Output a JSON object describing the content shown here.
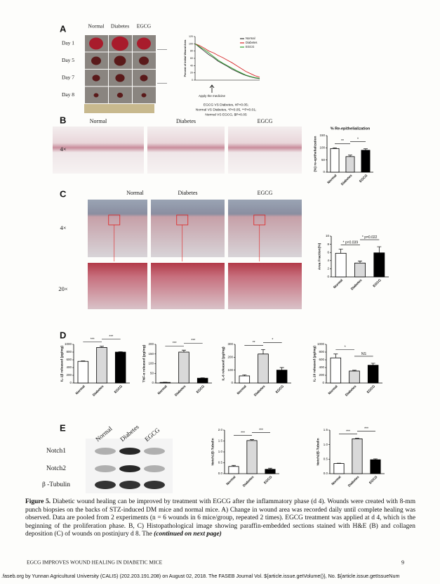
{
  "panel_labels": [
    "A",
    "B",
    "C",
    "D",
    "E"
  ],
  "panel_a": {
    "groups": [
      "Normal",
      "Diabetes",
      "EGCG"
    ],
    "days": [
      "Day 1",
      "Day 5",
      "Day 7",
      "Day 8"
    ],
    "chart": {
      "type": "line",
      "y_label": "Percent of initial Wound Area",
      "x": [
        0,
        1,
        2,
        3,
        4,
        5,
        6,
        7,
        8,
        9,
        10,
        11,
        12,
        13,
        14
      ],
      "xlim": [
        0,
        14
      ],
      "ylim": [
        0,
        120
      ],
      "yticks": [
        0,
        20,
        40,
        60,
        80,
        100,
        120
      ],
      "series": [
        {
          "name": "Normal",
          "color": "#333333",
          "values": [
            100,
            90,
            80,
            70,
            62,
            52,
            45,
            38,
            30,
            24,
            18,
            13,
            9,
            6,
            4
          ]
        },
        {
          "name": "Diabetes",
          "color": "#d62728",
          "values": [
            100,
            95,
            88,
            80,
            75,
            68,
            62,
            55,
            48,
            40,
            32,
            24,
            18,
            12,
            8
          ]
        },
        {
          "name": "EGCG",
          "color": "#2ca02c",
          "values": [
            100,
            92,
            84,
            75,
            65,
            55,
            47,
            40,
            33,
            26,
            20,
            14,
            10,
            7,
            5
          ]
        }
      ]
    },
    "treatment_note": "Apply the medicine",
    "stats_notes": [
      "EGCG VS Diabetes, #P<0.05;",
      "Normal VS Diabetes, *P<0.05, **P<0.01;",
      "Normal VS EGCG, $P<0.05"
    ]
  },
  "panel_b": {
    "groups": [
      "Normal",
      "Diabetes",
      "EGCG"
    ],
    "magnification": "4×",
    "chart": {
      "type": "bar",
      "title": "% Re-epithelialization",
      "y_label": "(%) re-epithelialization",
      "categories": [
        "Normal",
        "Diabetes",
        "EGCG"
      ],
      "values": [
        97,
        64,
        90
      ],
      "errors": [
        3,
        6,
        6
      ],
      "ylim": [
        0,
        150
      ],
      "yticks": [
        0,
        50,
        100,
        150
      ],
      "colors": [
        "#ffffff",
        "#d9d9d9",
        "#000000"
      ],
      "significance": [
        "**",
        "*"
      ]
    }
  },
  "panel_c": {
    "groups": [
      "Normal",
      "Diabetes",
      "EGCG"
    ],
    "magnifications": [
      "4×",
      "20×"
    ],
    "chart": {
      "type": "bar",
      "y_label": "Area Fraction(%)",
      "categories": [
        "Normal",
        "Diabetes",
        "EGCG"
      ],
      "values": [
        5.8,
        3.4,
        5.9
      ],
      "errors": [
        1.0,
        0.5,
        1.5
      ],
      "ylim": [
        0,
        10
      ],
      "yticks": [
        0,
        2,
        4,
        6,
        8,
        10
      ],
      "colors": [
        "#ffffff",
        "#d9d9d9",
        "#000000"
      ],
      "significance": [
        "* p=0.039",
        "* p=0.022"
      ]
    }
  },
  "panel_d": {
    "charts": [
      {
        "type": "bar",
        "y_label": "IL-1β released (pg/mg)",
        "categories": [
          "Normal",
          "Diabetes",
          "EGCG"
        ],
        "values": [
          560,
          920,
          800
        ],
        "errors": [
          10,
          30,
          10
        ],
        "ylim": [
          0,
          1000
        ],
        "yticks": [
          0,
          200,
          400,
          600,
          800,
          1000
        ],
        "colors": [
          "#ffffff",
          "#d9d9d9",
          "#000000"
        ],
        "significance": [
          "***",
          "***"
        ]
      },
      {
        "type": "bar",
        "y_label": "TNF-α released (pg/mg)",
        "categories": [
          "Normal",
          "Diabetes",
          "EGCG"
        ],
        "values": [
          3,
          160,
          25
        ],
        "errors": [
          1,
          10,
          2
        ],
        "ylim": [
          0,
          200
        ],
        "yticks": [
          0,
          50,
          100,
          150,
          200
        ],
        "colors": [
          "#ffffff",
          "#d9d9d9",
          "#000000"
        ],
        "significance": [
          "***",
          "***"
        ]
      },
      {
        "type": "bar",
        "y_label": "IL-6 released (pg/mg)",
        "categories": [
          "Normal",
          "Diabetes",
          "EGCG"
        ],
        "values": [
          55,
          225,
          100
        ],
        "errors": [
          8,
          35,
          20
        ],
        "ylim": [
          0,
          300
        ],
        "yticks": [
          0,
          100,
          200,
          300
        ],
        "colors": [
          "#ffffff",
          "#d9d9d9",
          "#000000"
        ],
        "significance": [
          "**",
          "*"
        ]
      },
      {
        "type": "bar",
        "y_label": "IL-10 released (pg/mg)",
        "categories": [
          "Normal",
          "Diabetes",
          "EGCG"
        ],
        "values": [
          650,
          310,
          460
        ],
        "errors": [
          100,
          20,
          50
        ],
        "ylim": [
          0,
          1000
        ],
        "yticks": [
          0,
          200,
          400,
          600,
          800,
          1000
        ],
        "colors": [
          "#ffffff",
          "#d9d9d9",
          "#000000"
        ],
        "significance": [
          "*",
          "NS"
        ]
      }
    ]
  },
  "panel_e": {
    "groups": [
      "Normal",
      "Diabetes",
      "EGCG"
    ],
    "proteins": [
      "Notch1",
      "Notch2",
      "β -Tubulin"
    ],
    "charts": [
      {
        "type": "bar",
        "y_label": "Notch1/β-Tubulin",
        "categories": [
          "Normal",
          "Diabetes",
          "EGCG"
        ],
        "values": [
          0.33,
          1.52,
          0.2
        ],
        "errors": [
          0.05,
          0.04,
          0.05
        ],
        "ylim": [
          0,
          2
        ],
        "yticks": [
          {
            "value": 0,
            "label": "0.0"
          },
          {
            "value": 0.5,
            "label": "0.5"
          },
          {
            "value": 1,
            "label": "1.0"
          },
          {
            "value": 1.5,
            "label": "1.5"
          },
          {
            "value": 2,
            "label": "2.0"
          }
        ],
        "colors": [
          "#ffffff",
          "#d9d9d9",
          "#000000"
        ],
        "significance": [
          "***",
          "***"
        ]
      },
      {
        "type": "bar",
        "y_label": "Notch2/β-Tubulin",
        "categories": [
          "Normal",
          "Diabetes",
          "EGCG"
        ],
        "values": [
          0.35,
          1.2,
          0.48
        ],
        "errors": [
          0.01,
          0.02,
          0.03
        ],
        "ylim": [
          0,
          1.5
        ],
        "yticks": [
          {
            "value": 0,
            "label": "0.0"
          },
          {
            "value": 0.5,
            "label": "0.5"
          },
          {
            "value": 1,
            "label": "1.0"
          },
          {
            "value": 1.5,
            "label": "1.5"
          }
        ],
        "colors": [
          "#ffffff",
          "#d9d9d9",
          "#000000"
        ],
        "significance": [
          "***",
          "***"
        ]
      }
    ]
  },
  "caption": {
    "label": "Figure 5.",
    "text": "Diabetic wound healing can be improved by treatment with EGCG after the inflammatory phase (d 4). Wounds were created with 8-mm punch biopsies on the backs of STZ-induced DM mice and normal mice. A) Change in wound area was recorded daily until complete healing was observed. Data are pooled from 2 experiments (n = 6 wounds in 6 mice/group, repeated 2 times). EGCG treatment was applied at d 4, which is the beginning of the proliferation phase. B, C) Histopathological image showing paraffin-embedded sections stained with H&E (B) and collagen deposition (C) of wounds on postinjury d 8. The",
    "continued": "(continued on next page)"
  },
  "footer": {
    "running_title": "EGCG IMPROVES WOUND HEALING IN DIABETIC MICE",
    "page": "9",
    "download": ".faseb.org by Yunnan Agricultural University (CALIS) (202.203.191.208) on August 02, 2018. The FASEB Journal Vol. ${article.issue.getVolume()}, No. ${article.issue.getIssueNum"
  }
}
